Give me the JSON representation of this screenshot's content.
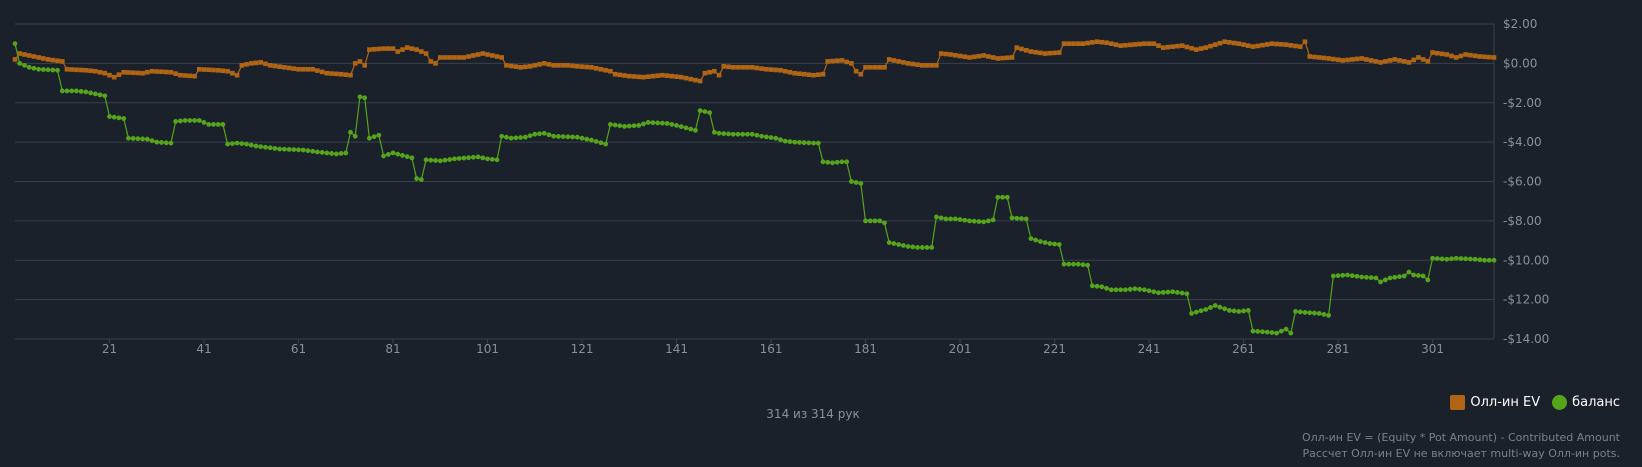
{
  "chart_data": {
    "type": "line",
    "xlim": [
      1,
      314
    ],
    "x_ticks": [
      21,
      41,
      61,
      81,
      101,
      121,
      141,
      161,
      181,
      201,
      221,
      241,
      261,
      281,
      301
    ],
    "ylim": [
      -14,
      2
    ],
    "y_ticks": [
      2,
      0,
      -2,
      -4,
      -6,
      -8,
      -10,
      -12,
      -14
    ],
    "y_tick_labels": [
      "$2.00",
      "$0.00",
      "-$2.00",
      "-$4.00",
      "-$6.00",
      "-$8.00",
      "-$10.00",
      "-$12.00",
      "-$14.00"
    ],
    "grid": true,
    "legend_position": "bottom-right",
    "series": [
      {
        "name": "Олл-ин EV",
        "color": "#b06515",
        "marker": "square",
        "points": [
          [
            1,
            0.2
          ],
          [
            2,
            0.5
          ],
          [
            5,
            0.35
          ],
          [
            8,
            0.2
          ],
          [
            11,
            0.1
          ],
          [
            12,
            -0.3
          ],
          [
            16,
            -0.35
          ],
          [
            18,
            -0.4
          ],
          [
            20,
            -0.5
          ],
          [
            22,
            -0.7
          ],
          [
            24,
            -0.45
          ],
          [
            28,
            -0.5
          ],
          [
            30,
            -0.4
          ],
          [
            34,
            -0.45
          ],
          [
            36,
            -0.6
          ],
          [
            39,
            -0.65
          ],
          [
            40,
            -0.3
          ],
          [
            44,
            -0.35
          ],
          [
            46,
            -0.4
          ],
          [
            48,
            -0.6
          ],
          [
            49,
            -0.1
          ],
          [
            51,
            0.0
          ],
          [
            53,
            0.05
          ],
          [
            55,
            -0.1
          ],
          [
            58,
            -0.2
          ],
          [
            61,
            -0.3
          ],
          [
            64,
            -0.3
          ],
          [
            67,
            -0.5
          ],
          [
            70,
            -0.55
          ],
          [
            72,
            -0.6
          ],
          [
            73,
            0.0
          ],
          [
            74,
            0.1
          ],
          [
            75,
            -0.1
          ],
          [
            76,
            0.7
          ],
          [
            79,
            0.75
          ],
          [
            81,
            0.75
          ],
          [
            82,
            0.6
          ],
          [
            84,
            0.8
          ],
          [
            86,
            0.7
          ],
          [
            88,
            0.5
          ],
          [
            89,
            0.1
          ],
          [
            90,
            0.0
          ],
          [
            91,
            0.3
          ],
          [
            96,
            0.3
          ],
          [
            100,
            0.5
          ],
          [
            102,
            0.4
          ],
          [
            104,
            0.3
          ],
          [
            105,
            -0.1
          ],
          [
            108,
            -0.2
          ],
          [
            110,
            -0.15
          ],
          [
            113,
            0.0
          ],
          [
            115,
            -0.1
          ],
          [
            118,
            -0.1
          ],
          [
            120,
            -0.15
          ],
          [
            123,
            -0.2
          ],
          [
            125,
            -0.3
          ],
          [
            127,
            -0.4
          ],
          [
            128,
            -0.55
          ],
          [
            131,
            -0.65
          ],
          [
            134,
            -0.7
          ],
          [
            136,
            -0.65
          ],
          [
            138,
            -0.6
          ],
          [
            140,
            -0.65
          ],
          [
            142,
            -0.7
          ],
          [
            144,
            -0.8
          ],
          [
            146,
            -0.9
          ],
          [
            147,
            -0.5
          ],
          [
            149,
            -0.4
          ],
          [
            150,
            -0.6
          ],
          [
            151,
            -0.15
          ],
          [
            153,
            -0.2
          ],
          [
            157,
            -0.2
          ],
          [
            160,
            -0.3
          ],
          [
            163,
            -0.35
          ],
          [
            166,
            -0.5
          ],
          [
            168,
            -0.55
          ],
          [
            170,
            -0.6
          ],
          [
            172,
            -0.55
          ],
          [
            173,
            0.1
          ],
          [
            176,
            0.15
          ],
          [
            178,
            0.0
          ],
          [
            179,
            -0.4
          ],
          [
            180,
            -0.55
          ],
          [
            181,
            -0.2
          ],
          [
            185,
            -0.2
          ],
          [
            186,
            0.2
          ],
          [
            190,
            0.0
          ],
          [
            193,
            -0.1
          ],
          [
            196,
            -0.1
          ],
          [
            197,
            0.5
          ],
          [
            199,
            0.45
          ],
          [
            203,
            0.3
          ],
          [
            206,
            0.4
          ],
          [
            209,
            0.25
          ],
          [
            212,
            0.3
          ],
          [
            213,
            0.8
          ],
          [
            216,
            0.6
          ],
          [
            219,
            0.5
          ],
          [
            222,
            0.55
          ],
          [
            223,
            1.0
          ],
          [
            227,
            1.0
          ],
          [
            230,
            1.1
          ],
          [
            232,
            1.05
          ],
          [
            235,
            0.9
          ],
          [
            240,
            1.0
          ],
          [
            242,
            1.0
          ],
          [
            244,
            0.8
          ],
          [
            248,
            0.9
          ],
          [
            251,
            0.7
          ],
          [
            253,
            0.8
          ],
          [
            257,
            1.1
          ],
          [
            260,
            1.0
          ],
          [
            263,
            0.85
          ],
          [
            267,
            1.0
          ],
          [
            270,
            0.95
          ],
          [
            273,
            0.85
          ],
          [
            274,
            1.1
          ],
          [
            275,
            0.35
          ],
          [
            279,
            0.25
          ],
          [
            282,
            0.15
          ],
          [
            286,
            0.25
          ],
          [
            290,
            0.05
          ],
          [
            293,
            0.2
          ],
          [
            296,
            0.05
          ],
          [
            298,
            0.3
          ],
          [
            300,
            0.1
          ],
          [
            301,
            0.55
          ],
          [
            304,
            0.45
          ],
          [
            306,
            0.3
          ],
          [
            308,
            0.45
          ],
          [
            311,
            0.35
          ],
          [
            314,
            0.3
          ]
        ]
      },
      {
        "name": "баланс",
        "color": "#55a41c",
        "marker": "circle",
        "points": [
          [
            1,
            1.0
          ],
          [
            2,
            0.0
          ],
          [
            4,
            -0.2
          ],
          [
            6,
            -0.3
          ],
          [
            10,
            -0.35
          ],
          [
            11,
            -1.4
          ],
          [
            14,
            -1.4
          ],
          [
            16,
            -1.45
          ],
          [
            19,
            -1.6
          ],
          [
            20,
            -1.65
          ],
          [
            21,
            -2.7
          ],
          [
            24,
            -2.8
          ],
          [
            25,
            -3.8
          ],
          [
            29,
            -3.85
          ],
          [
            31,
            -4.0
          ],
          [
            34,
            -4.05
          ],
          [
            35,
            -2.95
          ],
          [
            37,
            -2.9
          ],
          [
            40,
            -2.9
          ],
          [
            42,
            -3.1
          ],
          [
            45,
            -3.1
          ],
          [
            46,
            -4.1
          ],
          [
            48,
            -4.05
          ],
          [
            50,
            -4.1
          ],
          [
            52,
            -4.2
          ],
          [
            57,
            -4.35
          ],
          [
            62,
            -4.4
          ],
          [
            65,
            -4.5
          ],
          [
            69,
            -4.6
          ],
          [
            71,
            -4.55
          ],
          [
            72,
            -3.5
          ],
          [
            73,
            -3.7
          ],
          [
            74,
            -1.7
          ],
          [
            75,
            -1.75
          ],
          [
            76,
            -3.8
          ],
          [
            78,
            -3.65
          ],
          [
            79,
            -4.7
          ],
          [
            81,
            -4.55
          ],
          [
            85,
            -4.8
          ],
          [
            86,
            -5.85
          ],
          [
            87,
            -5.9
          ],
          [
            88,
            -4.9
          ],
          [
            91,
            -4.95
          ],
          [
            94,
            -4.85
          ],
          [
            99,
            -4.75
          ],
          [
            101,
            -4.85
          ],
          [
            103,
            -4.9
          ],
          [
            104,
            -3.7
          ],
          [
            106,
            -3.8
          ],
          [
            109,
            -3.75
          ],
          [
            111,
            -3.6
          ],
          [
            113,
            -3.55
          ],
          [
            115,
            -3.7
          ],
          [
            120,
            -3.75
          ],
          [
            123,
            -3.9
          ],
          [
            126,
            -4.1
          ],
          [
            127,
            -3.1
          ],
          [
            130,
            -3.2
          ],
          [
            133,
            -3.15
          ],
          [
            135,
            -3.0
          ],
          [
            139,
            -3.05
          ],
          [
            141,
            -3.15
          ],
          [
            145,
            -3.4
          ],
          [
            146,
            -2.4
          ],
          [
            148,
            -2.5
          ],
          [
            149,
            -3.5
          ],
          [
            150,
            -3.55
          ],
          [
            153,
            -3.6
          ],
          [
            157,
            -3.6
          ],
          [
            159,
            -3.7
          ],
          [
            162,
            -3.8
          ],
          [
            164,
            -3.95
          ],
          [
            166,
            -4.0
          ],
          [
            170,
            -4.05
          ],
          [
            172,
            -5.0
          ],
          [
            174,
            -5.05
          ],
          [
            176,
            -5.0
          ],
          [
            178,
            -6.0
          ],
          [
            180,
            -6.1
          ],
          [
            181,
            -8.0
          ],
          [
            184,
            -8.0
          ],
          [
            185,
            -8.1
          ],
          [
            186,
            -9.1
          ],
          [
            188,
            -9.2
          ],
          [
            190,
            -9.3
          ],
          [
            192,
            -9.35
          ],
          [
            195,
            -9.35
          ],
          [
            196,
            -7.8
          ],
          [
            198,
            -7.9
          ],
          [
            200,
            -7.9
          ],
          [
            203,
            -8.0
          ],
          [
            206,
            -8.05
          ],
          [
            208,
            -7.95
          ],
          [
            209,
            -6.8
          ],
          [
            211,
            -6.8
          ],
          [
            212,
            -7.85
          ],
          [
            215,
            -7.9
          ],
          [
            216,
            -8.9
          ],
          [
            218,
            -9.05
          ],
          [
            220,
            -9.15
          ],
          [
            222,
            -9.2
          ],
          [
            223,
            -10.2
          ],
          [
            226,
            -10.2
          ],
          [
            228,
            -10.25
          ],
          [
            229,
            -11.3
          ],
          [
            231,
            -11.35
          ],
          [
            233,
            -11.5
          ],
          [
            236,
            -11.5
          ],
          [
            238,
            -11.45
          ],
          [
            240,
            -11.5
          ],
          [
            243,
            -11.65
          ],
          [
            246,
            -11.6
          ],
          [
            249,
            -11.7
          ],
          [
            250,
            -12.7
          ],
          [
            253,
            -12.5
          ],
          [
            255,
            -12.3
          ],
          [
            258,
            -12.55
          ],
          [
            260,
            -12.6
          ],
          [
            262,
            -12.55
          ],
          [
            263,
            -13.6
          ],
          [
            266,
            -13.65
          ],
          [
            268,
            -13.7
          ],
          [
            269,
            -13.6
          ],
          [
            270,
            -13.5
          ],
          [
            271,
            -13.7
          ],
          [
            272,
            -12.6
          ],
          [
            274,
            -12.65
          ],
          [
            277,
            -12.7
          ],
          [
            279,
            -12.8
          ],
          [
            280,
            -10.8
          ],
          [
            283,
            -10.75
          ],
          [
            286,
            -10.85
          ],
          [
            289,
            -10.9
          ],
          [
            290,
            -11.1
          ],
          [
            292,
            -10.9
          ],
          [
            295,
            -10.8
          ],
          [
            296,
            -10.6
          ],
          [
            297,
            -10.75
          ],
          [
            299,
            -10.8
          ],
          [
            300,
            -11.0
          ],
          [
            301,
            -9.9
          ],
          [
            304,
            -9.95
          ],
          [
            306,
            -9.9
          ],
          [
            310,
            -9.95
          ],
          [
            312,
            -10.0
          ],
          [
            314,
            -10.0
          ]
        ]
      }
    ]
  },
  "colors": {
    "background": "#1b212b",
    "grid": "#3b414b",
    "axis_text": "#8a9099",
    "ev_series": "#b06515",
    "balance_series": "#55a41c"
  },
  "legend": {
    "ev_label": "Олл-ин EV",
    "balance_label": "баланс"
  },
  "hand_count": "314 из 314 рук",
  "footnote": {
    "line1": "Олл-ин EV = (Equity * Pot Amount) - Contributed Amount",
    "line2": "Рассчет Олл-ин EV не включает multi-way Олл-ин pots."
  }
}
